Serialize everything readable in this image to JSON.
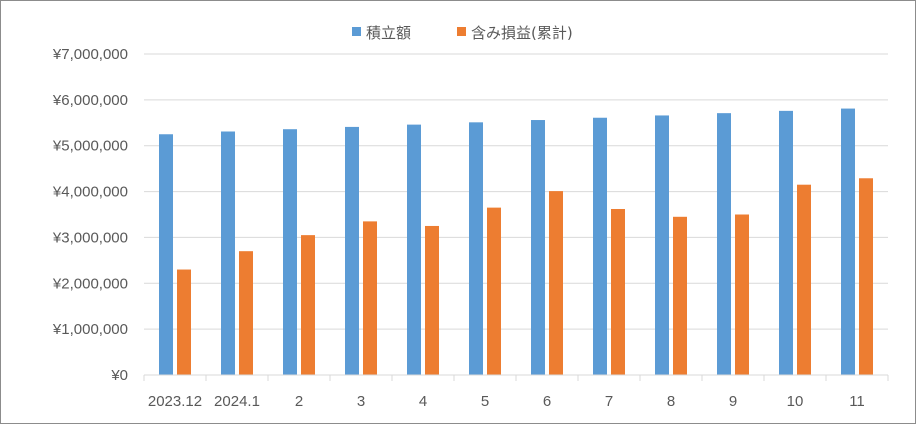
{
  "colors": {
    "series1": "#5b9bd5",
    "series2": "#ed7d31",
    "grid": "#d9d9d9",
    "axis_text": "#595959"
  },
  "chart_data": {
    "type": "bar",
    "title": "",
    "xlabel": "",
    "ylabel": "",
    "categories": [
      "2023.12",
      "2024.1",
      "2",
      "3",
      "4",
      "5",
      "6",
      "7",
      "8",
      "9",
      "10",
      "11"
    ],
    "series": [
      {
        "name": "積立額",
        "values": [
          5250000,
          5310000,
          5360000,
          5410000,
          5460000,
          5510000,
          5560000,
          5610000,
          5660000,
          5710000,
          5760000,
          5810000
        ]
      },
      {
        "name": "含み損益(累計)",
        "values": [
          2300000,
          2700000,
          3050000,
          3350000,
          3250000,
          3650000,
          4010000,
          3620000,
          3450000,
          3500000,
          4150000,
          4290000
        ]
      }
    ],
    "ylim": [
      0,
      7000000
    ],
    "y_ticks": [
      "¥0",
      "¥1,000,000",
      "¥2,000,000",
      "¥3,000,000",
      "¥4,000,000",
      "¥5,000,000",
      "¥6,000,000",
      "¥7,000,000"
    ],
    "grid": true,
    "legend": "top-center"
  }
}
